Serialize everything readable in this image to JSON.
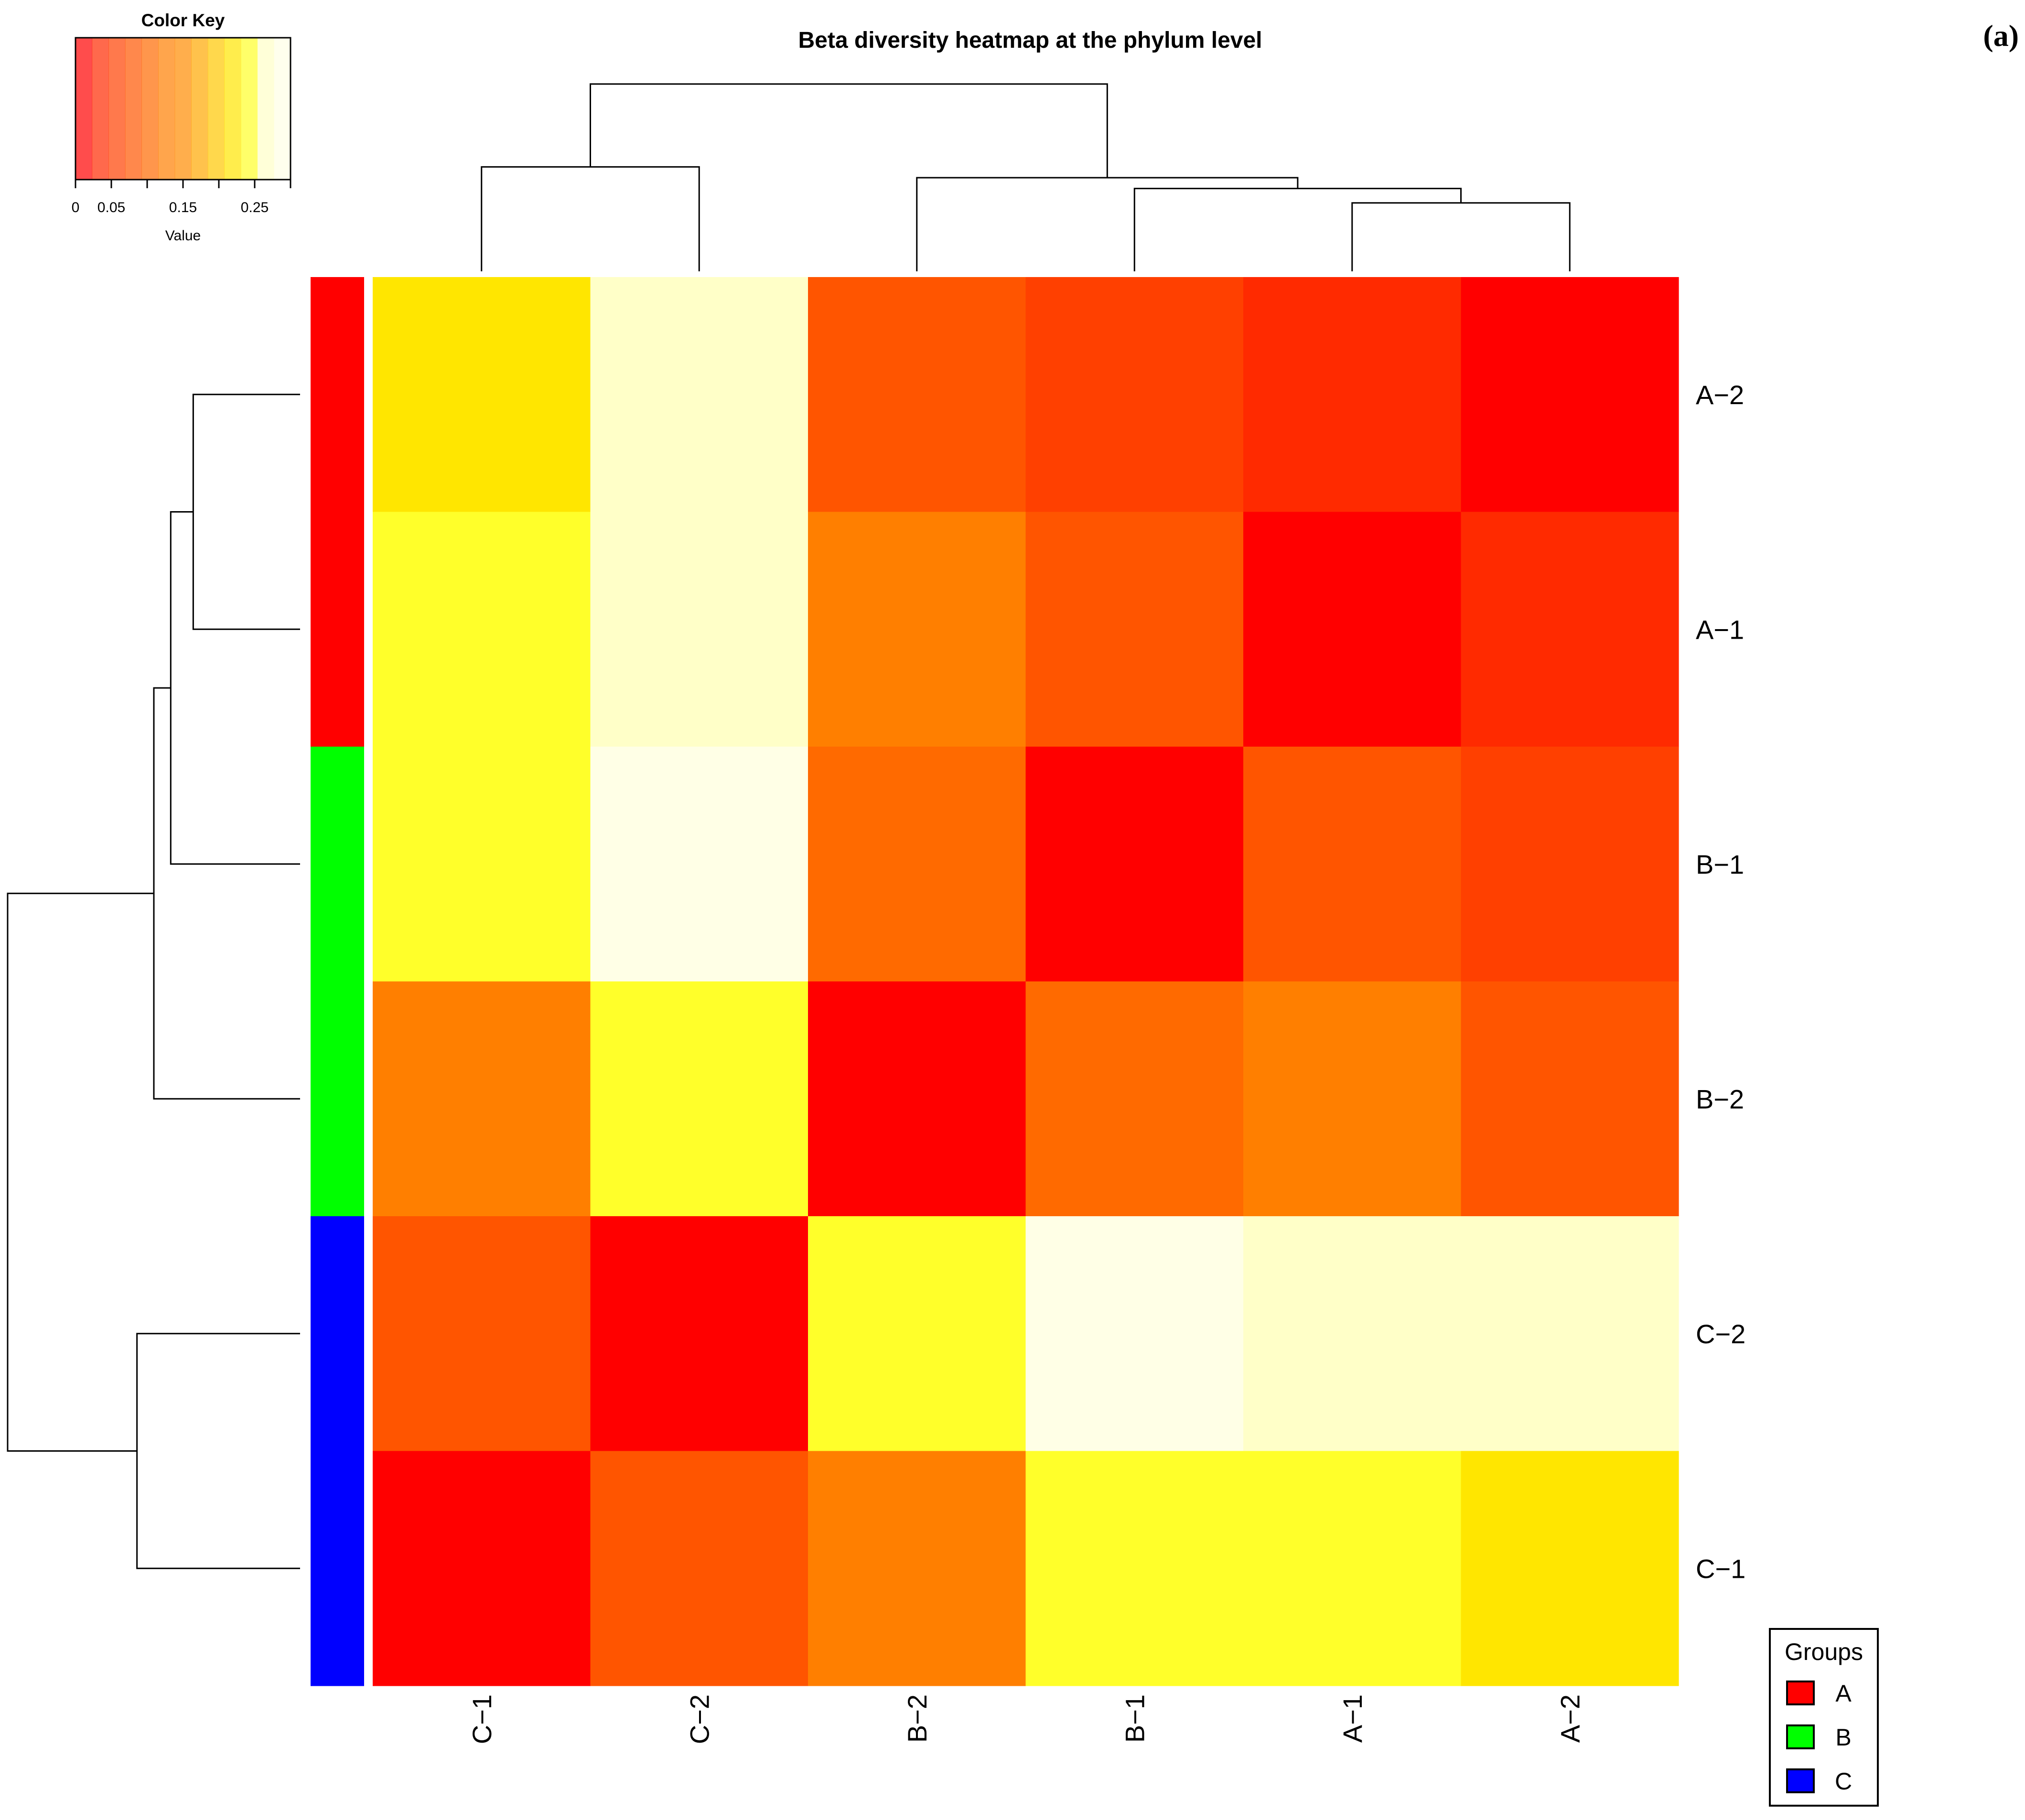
{
  "chart_data": {
    "type": "heatmap",
    "title": "Beta diversity heatmap at the phylum level",
    "panel_label": "(a)",
    "columns": [
      "C−1",
      "C−2",
      "B−2",
      "B−1",
      "A−1",
      "A−2"
    ],
    "rows": [
      "A−2",
      "A−1",
      "B−1",
      "B−2",
      "C−2",
      "C−1"
    ],
    "row_groups": [
      "A",
      "A",
      "B",
      "B",
      "C",
      "C"
    ],
    "values": [
      [
        0.21,
        0.27,
        0.09,
        0.06,
        0.04,
        0.0
      ],
      [
        0.24,
        0.27,
        0.12,
        0.09,
        0.0,
        0.04
      ],
      [
        0.24,
        0.3,
        0.1,
        0.0,
        0.09,
        0.06
      ],
      [
        0.12,
        0.24,
        0.0,
        0.1,
        0.12,
        0.09
      ],
      [
        0.09,
        0.0,
        0.24,
        0.3,
        0.27,
        0.27
      ],
      [
        0.0,
        0.09,
        0.12,
        0.24,
        0.24,
        0.21
      ]
    ],
    "color_key": {
      "title": "Color Key",
      "xlabel": "Value",
      "range": [
        0,
        0.3
      ],
      "ticks": [
        0,
        0.05,
        0.15,
        0.25
      ],
      "tick_labels": [
        "0",
        "0.05",
        "0.15",
        "0.25"
      ],
      "minor_ticks": [
        0.1,
        0.2,
        0.3
      ]
    },
    "legend": {
      "title": "Groups",
      "entries": [
        {
          "label": "A",
          "color": "#ff0000"
        },
        {
          "label": "B",
          "color": "#00ff00"
        },
        {
          "label": "C",
          "color": "#0000ff"
        }
      ]
    },
    "palette": [
      "#ff0000",
      "#ff2a00",
      "#ff4000",
      "#ff5500",
      "#ff6a00",
      "#ff7f00",
      "#ff8c00",
      "#ffa800",
      "#ffc800",
      "#ffe600",
      "#ffff2a",
      "#ffffc8",
      "#ffffe6"
    ],
    "col_dendrogram_merges": [
      {
        "left": [
          4
        ],
        "right": [
          5
        ],
        "height": 0.19
      },
      {
        "left": [
          3
        ],
        "right": [
          4,
          5
        ],
        "height": 0.23
      },
      {
        "left": [
          2
        ],
        "right": [
          3,
          4,
          5
        ],
        "height": 0.26
      },
      {
        "left": [
          0
        ],
        "right": [
          1
        ],
        "height": 0.29
      },
      {
        "left": [
          0,
          1
        ],
        "right": [
          2,
          3,
          4,
          5
        ],
        "height": 0.52
      }
    ],
    "row_dendrogram_merges": [
      {
        "left": [
          0
        ],
        "right": [
          1
        ],
        "height": 0.19
      },
      {
        "left": [
          0,
          1
        ],
        "right": [
          2
        ],
        "height": 0.23
      },
      {
        "left": [
          4
        ],
        "right": [
          5
        ],
        "height": 0.29
      },
      {
        "left": [
          0,
          1,
          2
        ],
        "right": [
          3
        ],
        "height": 0.26
      },
      {
        "left": [
          0,
          1,
          2,
          3
        ],
        "right": [
          4,
          5
        ],
        "height": 0.52
      }
    ]
  }
}
